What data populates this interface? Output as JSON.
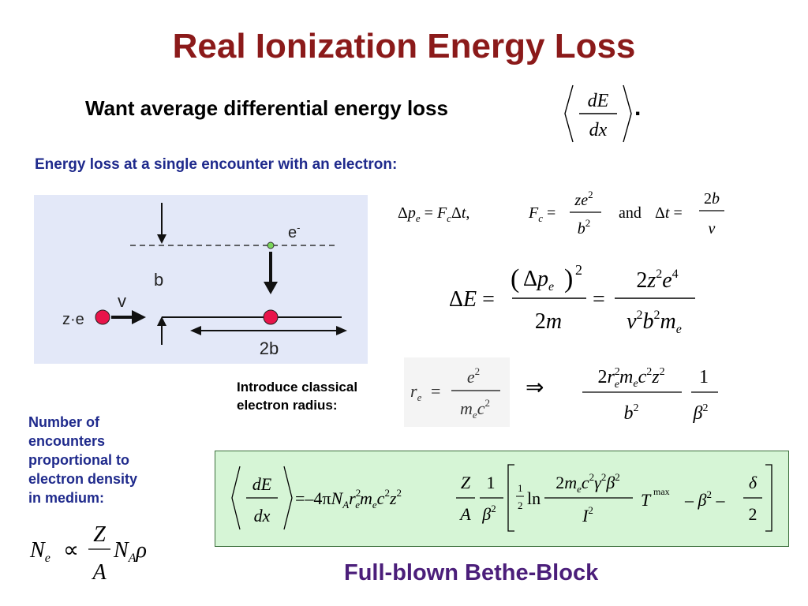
{
  "title": "Real Ionization Energy Loss",
  "want_text": "Want average differential energy loss",
  "want_period": ".",
  "single_encounter": "Energy loss at a single encounter with an electron:",
  "diagram": {
    "electron_label": "e-",
    "impact_label": "b",
    "charge_label": "z·e",
    "velocity_label": "v",
    "distance_label": "2b",
    "colors": {
      "background": "#e3e8f8",
      "particle": "#e8144a",
      "electron": "#7ad65a"
    }
  },
  "intro_line1": "Introduce classical",
  "intro_line2": "electron radius:",
  "side_lines": [
    "Number of",
    "encounters",
    "proportional to",
    "electron density",
    "in medium:"
  ],
  "bethe_label": "Full-blown Bethe-Block",
  "eq": {
    "and": "and",
    "ln": "ln",
    "max": "max"
  }
}
